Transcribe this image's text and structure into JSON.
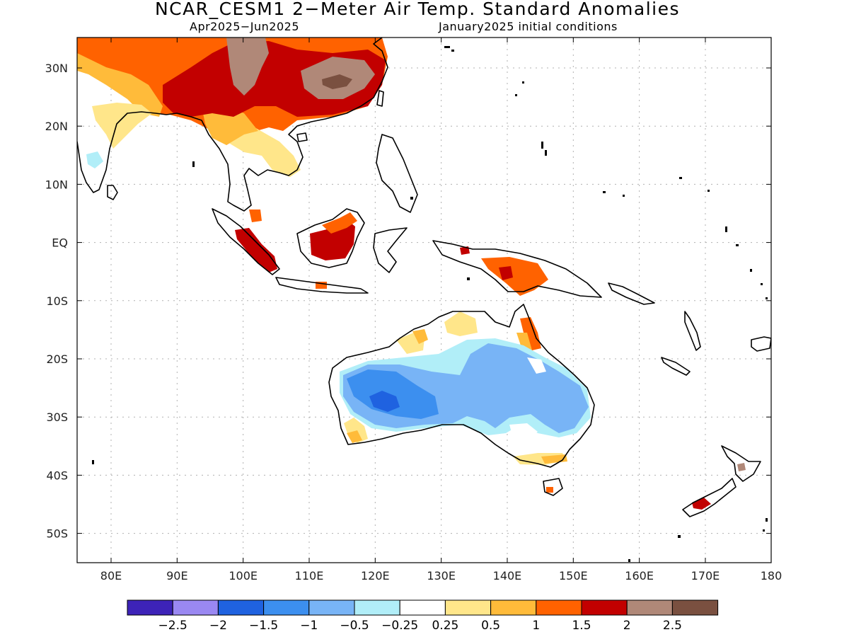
{
  "title": "NCAR_CESM1 2−Meter Air Temp. Standard Anomalies",
  "period": "Apr2025−Jun2025",
  "init": "January2025 initial conditions",
  "lon_ticks": [
    "80E",
    "90E",
    "100E",
    "110E",
    "120E",
    "130E",
    "140E",
    "150E",
    "160E",
    "170E",
    "180"
  ],
  "lat_ticks": [
    "30N",
    "20N",
    "10N",
    "EQ",
    "10S",
    "20S",
    "30S",
    "40S",
    "50S"
  ],
  "colorbar": {
    "colors": [
      "#3d23b8",
      "#9a88f2",
      "#1f62e0",
      "#3c8fef",
      "#78b4f6",
      "#b1eef8",
      "#ffffff",
      "#ffe68a",
      "#ffbb3a",
      "#ff6200",
      "#c20000",
      "#b08878",
      "#7a5040"
    ],
    "labels": [
      "−2.5",
      "−2",
      "−1.5",
      "−1",
      "−0.5",
      "−0.25",
      "0.25",
      "0.5",
      "1",
      "1.5",
      "2",
      "2.5"
    ]
  }
}
